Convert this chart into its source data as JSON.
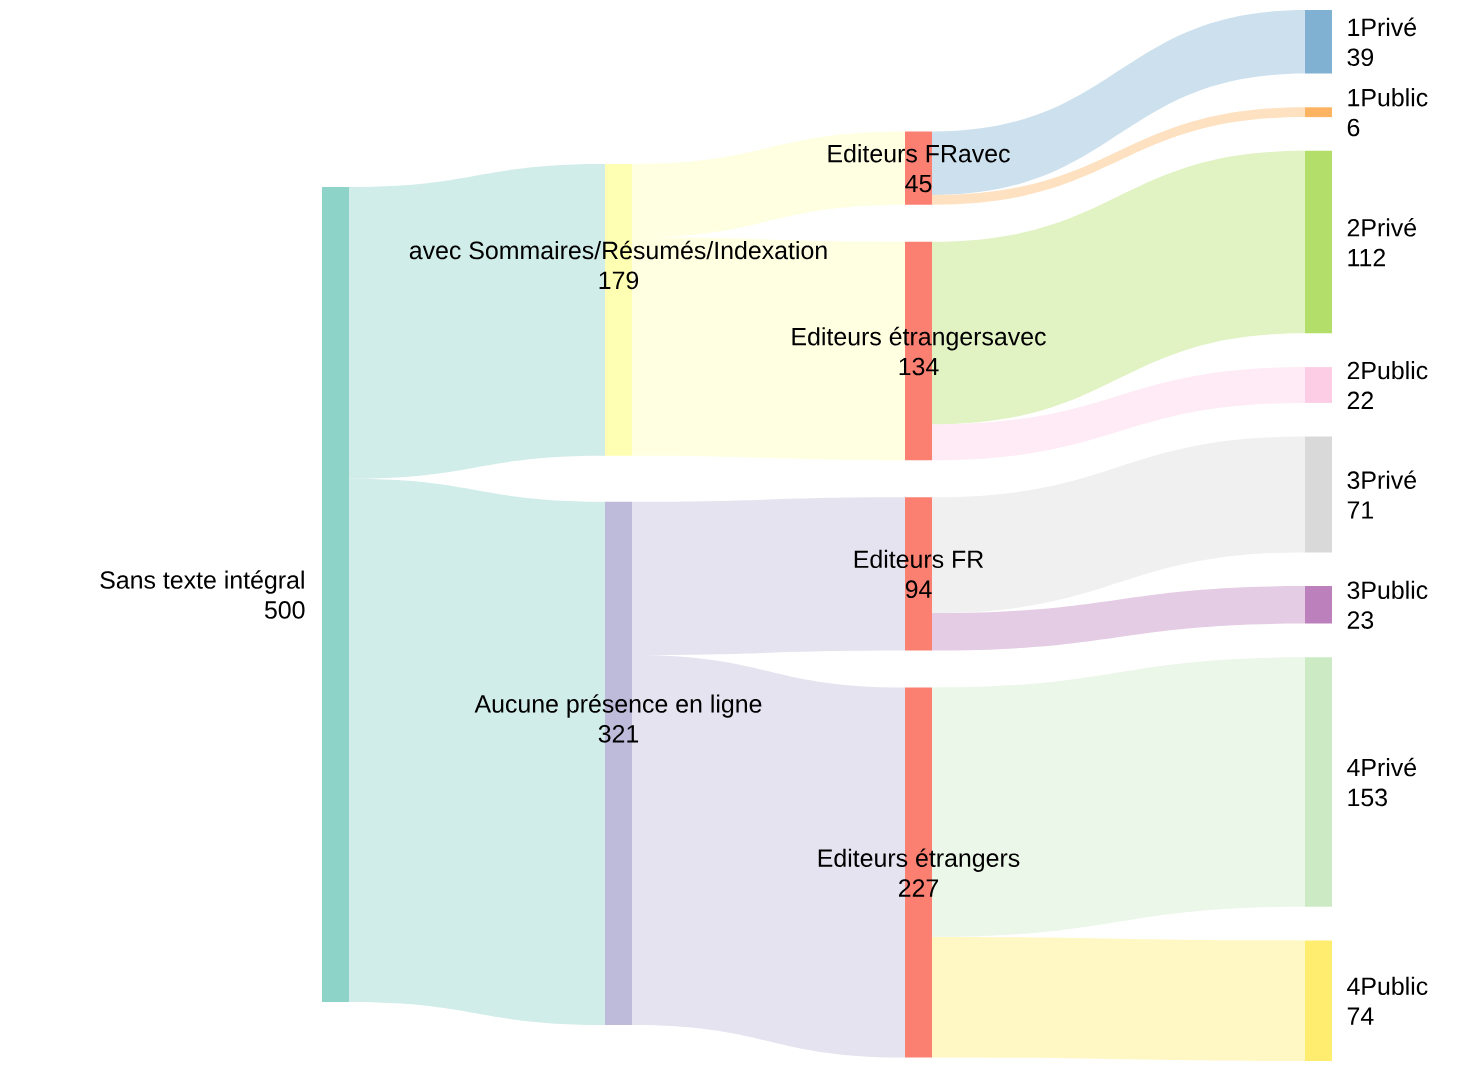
{
  "chart_data": {
    "type": "other",
    "data_labels": true,
    "categories": [
      "Sans texte intégral",
      "avec Sommaires/Résumés/Indexation",
      "Aucune présence en ligne",
      "Editeurs FRavec",
      "Editeurs étrangersavec",
      "Editeurs FR",
      "Editeurs étrangers",
      "1Privé",
      "1Public",
      "2Privé",
      "2Public",
      "3Privé",
      "3Public",
      "4Privé",
      "4Public"
    ],
    "values": [
      500,
      179,
      321,
      45,
      134,
      94,
      227,
      39,
      6,
      112,
      22,
      71,
      23,
      153,
      74
    ],
    "colors": [
      "#8dd3c7",
      "#ffffb3",
      "#bebada",
      "#fb8072",
      "#fb8072",
      "#fb8072",
      "#fb8072",
      "#80b1d3",
      "#fdb462",
      "#b3de69",
      "#fccde5",
      "#d9d9d9",
      "#bc80bd",
      "#ccebc5",
      "#ffed6f"
    ]
  }
}
